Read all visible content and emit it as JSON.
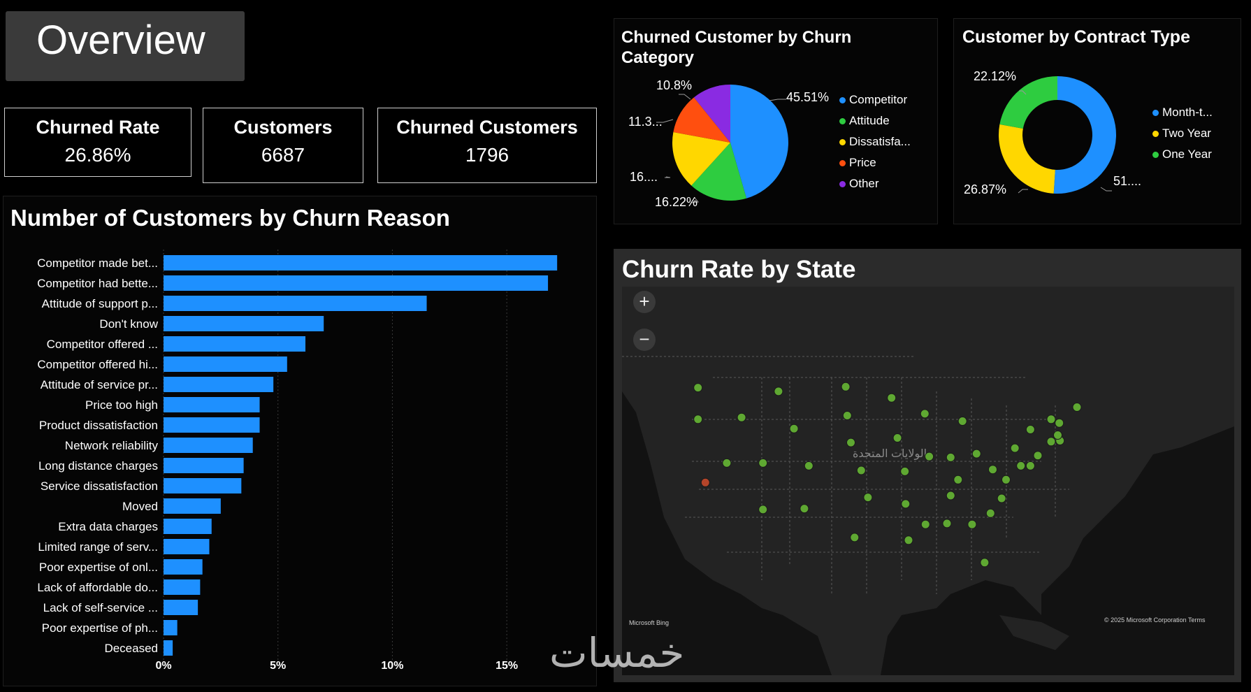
{
  "page": {
    "title": "Overview"
  },
  "kpis": [
    {
      "label": "Churned Rate",
      "value": "26.86%"
    },
    {
      "label": "Customers",
      "value": "6687"
    },
    {
      "label": "Churned Customers",
      "value": "1796"
    }
  ],
  "bar_panel": {
    "title": "Number of Customers by Churn Reason"
  },
  "pie_panel": {
    "title_line1": "Churned Customer by Churn",
    "title_line2": "Category",
    "labels": {
      "competitor": "45.51%",
      "attitude": "16.22%",
      "dissatisfaction": "16....",
      "price": "11.3...",
      "other": "10.8%"
    },
    "legend": [
      {
        "label": "Competitor",
        "color": "#1e90ff"
      },
      {
        "label": "Attitude",
        "color": "#2ecc40"
      },
      {
        "label": "Dissatisfa...",
        "color": "#ffd700"
      },
      {
        "label": "Price",
        "color": "#ff4f0f"
      },
      {
        "label": "Other",
        "color": "#8a2be2"
      }
    ]
  },
  "donut_panel": {
    "title": "Customer by Contract Type",
    "labels": {
      "month": "51....",
      "two_year": "26.87%",
      "one_year": "22.12%"
    },
    "legend": [
      {
        "label": "Month-t...",
        "color": "#1e90ff"
      },
      {
        "label": "Two Year",
        "color": "#ffd700"
      },
      {
        "label": "One Year",
        "color": "#2ecc40"
      }
    ]
  },
  "map_panel": {
    "title": "Churn Rate by State",
    "zoom_in": "+",
    "zoom_out": "−",
    "map_label": "الولايات المتحدة",
    "attribution": "© 2025 Microsoft Corporation Terms",
    "bing": "Microsoft Bing"
  },
  "watermark": "خمسات",
  "chart_data": [
    {
      "type": "bar",
      "orientation": "horizontal",
      "title": "Number of Customers by Churn Reason",
      "categories": [
        "Competitor made bet...",
        "Competitor had bette...",
        "Attitude of support p...",
        "Don't know",
        "Competitor offered ...",
        "Competitor offered hi...",
        "Attitude of service pr...",
        "Price too high",
        "Product dissatisfaction",
        "Network reliability",
        "Long distance charges",
        "Service dissatisfaction",
        "Moved",
        "Extra data charges",
        "Limited range of serv...",
        "Poor expertise of onl...",
        "Lack of affordable do...",
        "Lack of self-service ...",
        "Poor expertise of ph...",
        "Deceased"
      ],
      "values": [
        17.2,
        16.8,
        11.5,
        7.0,
        6.2,
        5.4,
        4.8,
        4.2,
        4.2,
        3.9,
        3.5,
        3.4,
        2.5,
        2.1,
        2.0,
        1.7,
        1.6,
        1.5,
        0.6,
        0.4
      ],
      "xticks": [
        "0%",
        "5%",
        "10%",
        "15%"
      ],
      "xlim": [
        0,
        17.5
      ],
      "color": "#1e90ff"
    },
    {
      "type": "pie",
      "title": "Churned Customer by Churn Category",
      "categories": [
        "Competitor",
        "Attitude",
        "Dissatisfaction",
        "Price",
        "Other"
      ],
      "values": [
        45.51,
        16.22,
        16.17,
        11.3,
        10.8
      ]
    },
    {
      "type": "pie",
      "donut": true,
      "title": "Customer by Contract Type",
      "categories": [
        "Month-to-Month",
        "Two Year",
        "One Year"
      ],
      "values": [
        51.01,
        26.87,
        22.12
      ]
    }
  ],
  "map_points": {
    "color_normal": "#5fa832",
    "color_high": "#b5452a",
    "states": [
      {
        "name": "WA",
        "lon": -120.5,
        "lat": 47.4,
        "level": "normal"
      },
      {
        "name": "OR",
        "lon": -120.5,
        "lat": 44.0,
        "level": "normal"
      },
      {
        "name": "CA",
        "lon": -119.5,
        "lat": 37.2,
        "level": "high"
      },
      {
        "name": "ID",
        "lon": -114.6,
        "lat": 44.2,
        "level": "normal"
      },
      {
        "name": "NV",
        "lon": -116.6,
        "lat": 39.3,
        "level": "normal"
      },
      {
        "name": "MT",
        "lon": -109.6,
        "lat": 47.0,
        "level": "normal"
      },
      {
        "name": "WY",
        "lon": -107.5,
        "lat": 43.0,
        "level": "normal"
      },
      {
        "name": "UT",
        "lon": -111.7,
        "lat": 39.3,
        "level": "normal"
      },
      {
        "name": "AZ",
        "lon": -111.7,
        "lat": 34.3,
        "level": "normal"
      },
      {
        "name": "CO",
        "lon": -105.5,
        "lat": 39.0,
        "level": "normal"
      },
      {
        "name": "NM",
        "lon": -106.1,
        "lat": 34.4,
        "level": "normal"
      },
      {
        "name": "ND",
        "lon": -100.5,
        "lat": 47.5,
        "level": "normal"
      },
      {
        "name": "SD",
        "lon": -100.3,
        "lat": 44.4,
        "level": "normal"
      },
      {
        "name": "NE",
        "lon": -99.8,
        "lat": 41.5,
        "level": "normal"
      },
      {
        "name": "KS",
        "lon": -98.4,
        "lat": 38.5,
        "level": "normal"
      },
      {
        "name": "OK",
        "lon": -97.5,
        "lat": 35.6,
        "level": "normal"
      },
      {
        "name": "TX",
        "lon": -99.3,
        "lat": 31.3,
        "level": "normal"
      },
      {
        "name": "MN",
        "lon": -94.3,
        "lat": 46.3,
        "level": "normal"
      },
      {
        "name": "IA",
        "lon": -93.5,
        "lat": 42.0,
        "level": "normal"
      },
      {
        "name": "MO",
        "lon": -92.5,
        "lat": 38.4,
        "level": "normal"
      },
      {
        "name": "AR",
        "lon": -92.4,
        "lat": 34.9,
        "level": "normal"
      },
      {
        "name": "LA",
        "lon": -92.0,
        "lat": 31.0,
        "level": "normal"
      },
      {
        "name": "WI",
        "lon": -89.8,
        "lat": 44.6,
        "level": "normal"
      },
      {
        "name": "IL",
        "lon": -89.2,
        "lat": 40.0,
        "level": "normal"
      },
      {
        "name": "MS",
        "lon": -89.7,
        "lat": 32.7,
        "level": "normal"
      },
      {
        "name": "MI",
        "lon": -84.7,
        "lat": 43.8,
        "level": "normal"
      },
      {
        "name": "IN",
        "lon": -86.3,
        "lat": 39.9,
        "level": "normal"
      },
      {
        "name": "KY",
        "lon": -85.3,
        "lat": 37.5,
        "level": "normal"
      },
      {
        "name": "TN",
        "lon": -86.3,
        "lat": 35.8,
        "level": "normal"
      },
      {
        "name": "AL",
        "lon": -86.8,
        "lat": 32.8,
        "level": "normal"
      },
      {
        "name": "OH",
        "lon": -82.8,
        "lat": 40.3,
        "level": "normal"
      },
      {
        "name": "GA",
        "lon": -83.4,
        "lat": 32.7,
        "level": "normal"
      },
      {
        "name": "FL",
        "lon": -81.7,
        "lat": 28.6,
        "level": "normal"
      },
      {
        "name": "SC",
        "lon": -80.9,
        "lat": 33.9,
        "level": "normal"
      },
      {
        "name": "NC",
        "lon": -79.4,
        "lat": 35.5,
        "level": "normal"
      },
      {
        "name": "VA",
        "lon": -78.8,
        "lat": 37.5,
        "level": "normal"
      },
      {
        "name": "WV",
        "lon": -80.6,
        "lat": 38.6,
        "level": "normal"
      },
      {
        "name": "PA",
        "lon": -77.6,
        "lat": 40.9,
        "level": "normal"
      },
      {
        "name": "NY",
        "lon": -75.5,
        "lat": 42.9,
        "level": "normal"
      },
      {
        "name": "MD",
        "lon": -76.8,
        "lat": 39.0,
        "level": "normal"
      },
      {
        "name": "DE",
        "lon": -75.5,
        "lat": 39.0,
        "level": "normal"
      },
      {
        "name": "NJ",
        "lon": -74.5,
        "lat": 40.1,
        "level": "normal"
      },
      {
        "name": "CT",
        "lon": -72.7,
        "lat": 41.6,
        "level": "normal"
      },
      {
        "name": "RI",
        "lon": -71.5,
        "lat": 41.7,
        "level": "normal"
      },
      {
        "name": "MA",
        "lon": -71.8,
        "lat": 42.3,
        "level": "normal"
      },
      {
        "name": "VT",
        "lon": -72.7,
        "lat": 44.0,
        "level": "normal"
      },
      {
        "name": "NH",
        "lon": -71.6,
        "lat": 43.6,
        "level": "normal"
      },
      {
        "name": "ME",
        "lon": -69.2,
        "lat": 45.3,
        "level": "normal"
      }
    ]
  }
}
